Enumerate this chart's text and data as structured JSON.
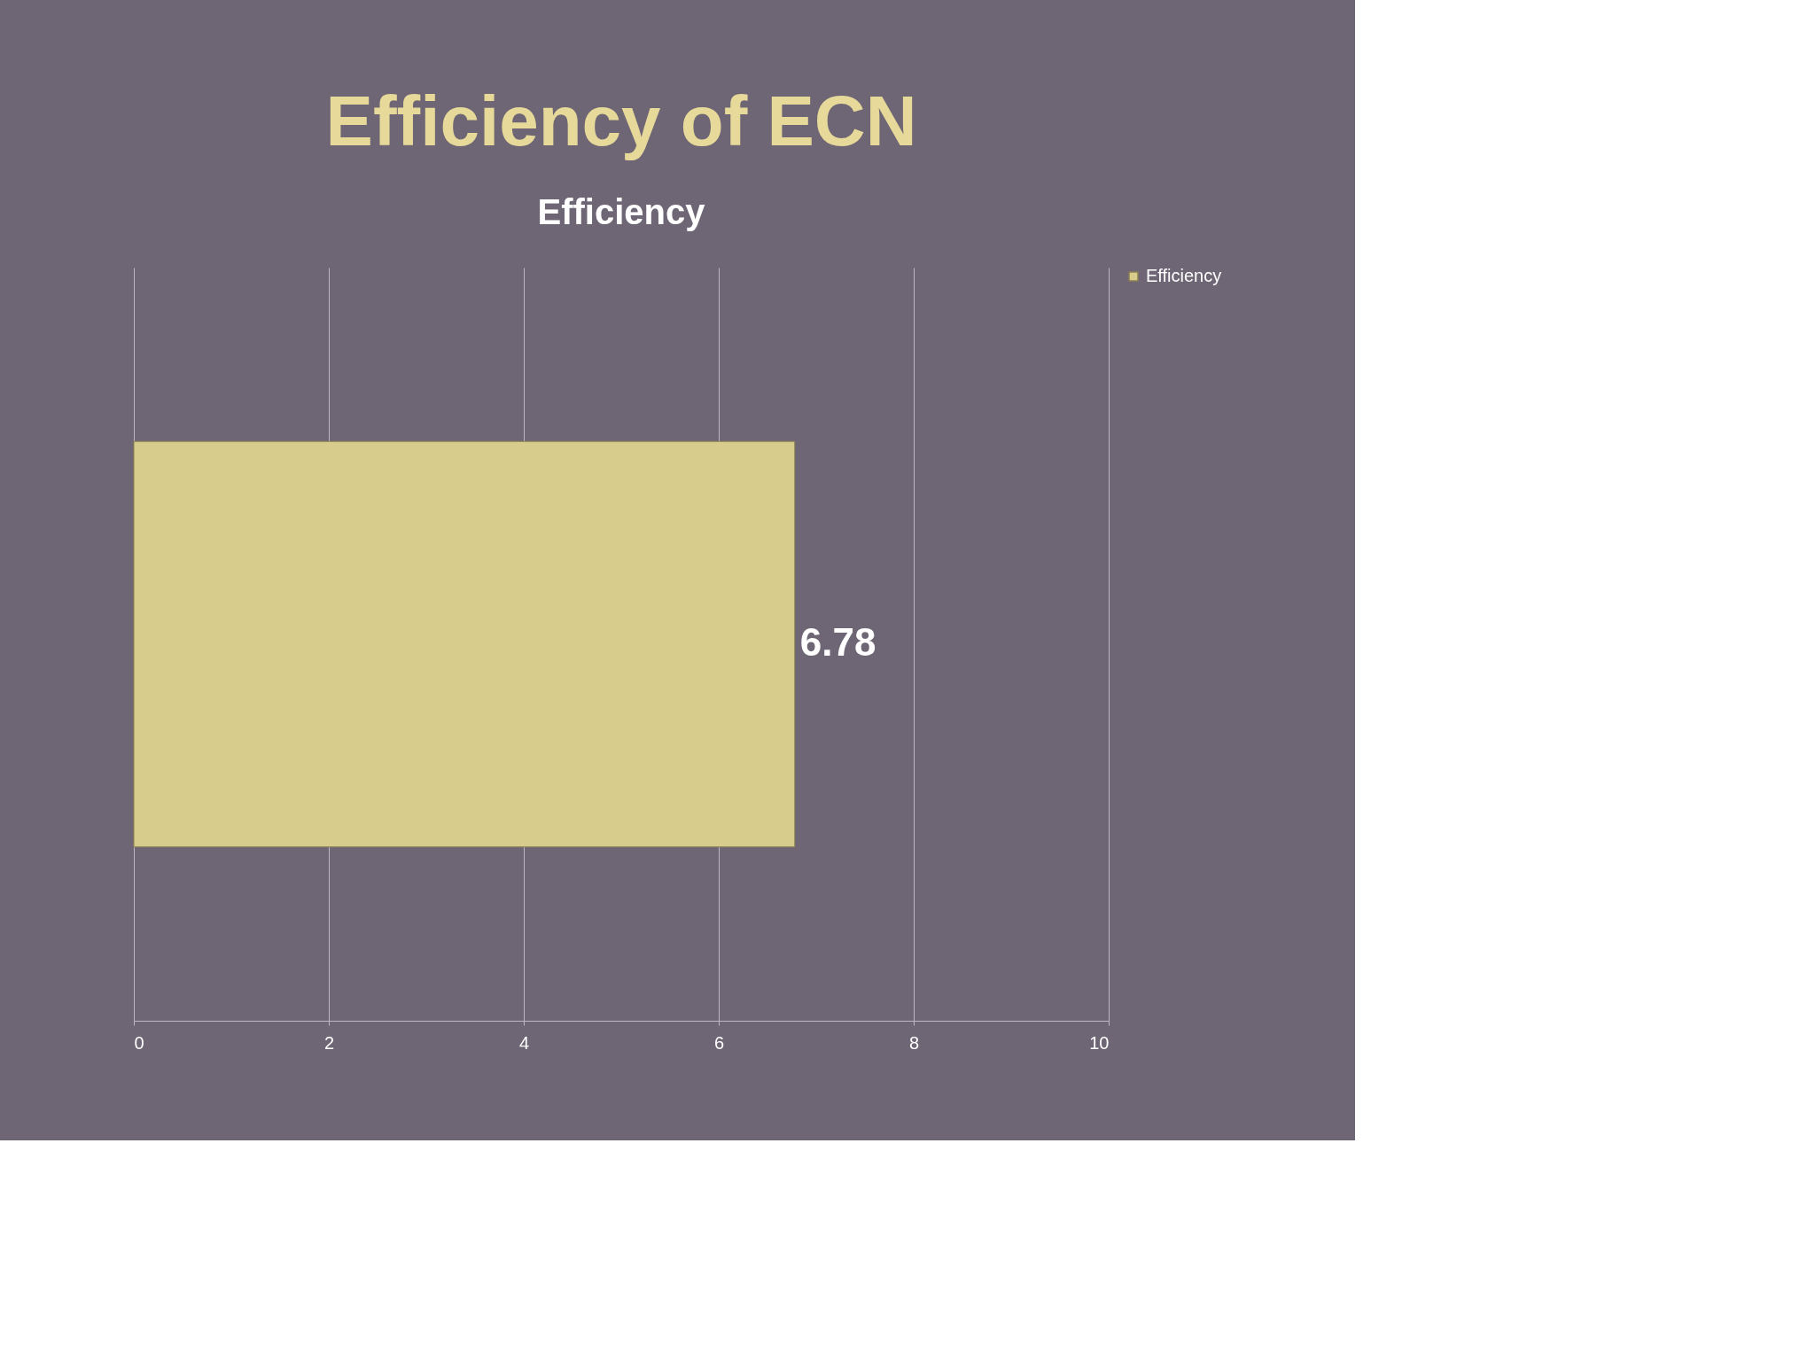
{
  "chart_data": {
    "type": "bar",
    "orientation": "horizontal",
    "title": "Efficiency of ECN",
    "subtitle": "Efficiency",
    "categories": [
      null
    ],
    "series": [
      {
        "name": "Efficiency",
        "color": "#d8cc8c",
        "values": [
          6.78
        ]
      }
    ],
    "xlim": [
      0,
      10
    ],
    "xticks": [
      0,
      2,
      4,
      6,
      8,
      10
    ],
    "grid": "x",
    "legend": "right",
    "data_labels": true,
    "tick_labels": "x"
  }
}
